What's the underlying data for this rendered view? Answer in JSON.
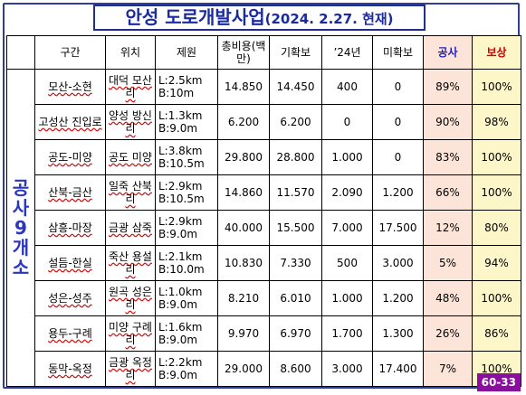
{
  "title": {
    "main": "안성 도로개발사업",
    "date": "(2024. 2.27. 현재)"
  },
  "headers": {
    "section": "구간",
    "location": "위치",
    "spec": "제원",
    "cost": "총비용(백만)",
    "secured": "기확보",
    "y2024": "’24년",
    "unsecured": "미확보",
    "construction": "공사",
    "compensation": "보상"
  },
  "category_label": "공사 9개소",
  "rows": [
    {
      "section": "모산-소현",
      "location": "대덕 모산리",
      "spec": "L:2.5km B:10m",
      "cost": "14.850",
      "secured": "14.450",
      "y2024": "400",
      "unsecured": "0",
      "construction": "89%",
      "compensation": "100%"
    },
    {
      "section": "고성산 진입로",
      "location": "양성 방신리",
      "spec": "L:1.3km B:9.0m",
      "cost": "6.200",
      "secured": "6.200",
      "y2024": "0",
      "unsecured": "0",
      "construction": "90%",
      "compensation": "98%"
    },
    {
      "section": "공도-미양",
      "location": "공도 미양",
      "spec": "L:3.8km B:10.5m",
      "cost": "29.800",
      "secured": "28.800",
      "y2024": "1.000",
      "unsecured": "0",
      "construction": "83%",
      "compensation": "100%"
    },
    {
      "section": "산북-금산",
      "location": "일죽 산북리",
      "spec": "L:2.9km B:10.5m",
      "cost": "14.860",
      "secured": "11.570",
      "y2024": "2.090",
      "unsecured": "1.200",
      "construction": "66%",
      "compensation": "100%"
    },
    {
      "section": "삼흥-마장",
      "location": "금광 삼죽",
      "spec": "L:2.9km B:9.0m",
      "cost": "40.000",
      "secured": "15.500",
      "y2024": "7.000",
      "unsecured": "17.500",
      "construction": "12%",
      "compensation": "80%"
    },
    {
      "section": "설듬-한실",
      "location": "죽산 용설리",
      "spec": "L:2.1km B:10.0m",
      "cost": "10.830",
      "secured": "7.330",
      "y2024": "500",
      "unsecured": "3.000",
      "construction": "5%",
      "compensation": "94%"
    },
    {
      "section": "성은-성주",
      "location": "원곡 성은리",
      "spec": "L:1.0km B:9.0m",
      "cost": "8.210",
      "secured": "6.010",
      "y2024": "1.000",
      "unsecured": "1.200",
      "construction": "48%",
      "compensation": "100%"
    },
    {
      "section": "용두-구례",
      "location": "미양 구례리",
      "spec": "L:1.6km B:9.0m",
      "cost": "9.970",
      "secured": "6.970",
      "y2024": "1.700",
      "unsecured": "1.300",
      "construction": "26%",
      "compensation": "86%"
    },
    {
      "section": "동막-옥정",
      "location": "금광 옥정리",
      "spec": "L:2.2km B:9.0m",
      "cost": "29.000",
      "secured": "8.600",
      "y2024": "3.000",
      "unsecured": "17.400",
      "construction": "7%",
      "compensation": "100%"
    }
  ],
  "page_number": "60-33"
}
